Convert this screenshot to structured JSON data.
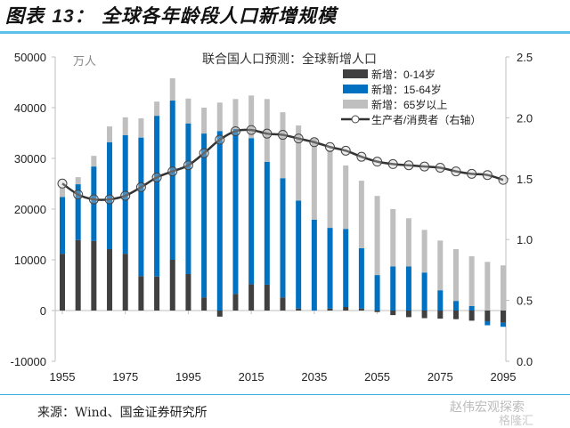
{
  "header": {
    "title_prefix": "图表",
    "title_number": "13：",
    "title_text": "全球各年龄段人口新增规模"
  },
  "footer": {
    "source": "来源：Wind、国金证券研究所",
    "watermark": "赵伟宏观探索",
    "watermark2": "格隆汇"
  },
  "colors": {
    "age_0_14": "#404040",
    "age_15_64": "#0070c0",
    "age_65_plus": "#bfbfbf",
    "ratio_line": "#333333",
    "title_rule": "#5bc0eb"
  },
  "chart_data": {
    "type": "bar",
    "stacked": true,
    "title": "联合国人口预测：全球新增人口",
    "unit_label": "万人",
    "xlabel": "",
    "ylabel": "万人",
    "y2label": "生产者/消费者（右轴）",
    "ylim": [
      -10000,
      50000
    ],
    "y2lim": [
      0.0,
      2.5
    ],
    "yticks": [
      "50000",
      "40000",
      "30000",
      "20000",
      "10000",
      "0",
      "-10000"
    ],
    "y2ticks": [
      "2.5",
      "2.0",
      "1.5",
      "1.0",
      "0.5",
      "0.0"
    ],
    "xtick_labels": [
      "1955",
      "1975",
      "1995",
      "2015",
      "2035",
      "2055",
      "2075",
      "2095"
    ],
    "legend_position": "top-right",
    "x": [
      1955,
      1960,
      1965,
      1970,
      1975,
      1980,
      1985,
      1990,
      1995,
      2000,
      2005,
      2010,
      2015,
      2020,
      2025,
      2030,
      2035,
      2040,
      2045,
      2050,
      2055,
      2060,
      2065,
      2070,
      2075,
      2080,
      2085,
      2090,
      2095
    ],
    "series": [
      {
        "name": "新增：0-14岁",
        "key": "age_0_14",
        "type": "bar",
        "values": [
          11200,
          13900,
          13700,
          12100,
          11200,
          6800,
          6700,
          10000,
          7200,
          2600,
          -1200,
          3300,
          5200,
          5100,
          2600,
          400,
          0,
          400,
          700,
          400,
          -300,
          -900,
          -1300,
          -1500,
          -1600,
          -1700,
          -2000,
          -2100,
          -2400
        ]
      },
      {
        "name": "新增：15-64岁",
        "key": "age_15_64",
        "type": "bar",
        "values": [
          11200,
          11000,
          14700,
          21100,
          23400,
          27300,
          31700,
          31400,
          29700,
          32300,
          35400,
          32500,
          28800,
          24200,
          23500,
          21300,
          17900,
          15900,
          15400,
          11900,
          7000,
          8700,
          8700,
          7500,
          4000,
          1900,
          900,
          -800,
          -800
        ]
      },
      {
        "name": "新增：65岁以上",
        "key": "age_65_plus",
        "type": "bar",
        "values": [
          1800,
          1400,
          2100,
          3100,
          3500,
          3800,
          2800,
          4400,
          4900,
          5100,
          5600,
          5900,
          8400,
          12400,
          13000,
          14800,
          16000,
          15300,
          12500,
          13300,
          15600,
          11300,
          9500,
          8400,
          9800,
          10200,
          9800,
          9600,
          8900
        ]
      },
      {
        "name": "生产者/消费者（右轴）",
        "key": "ratio_line",
        "type": "line",
        "axis": "right",
        "values": [
          1.46,
          1.37,
          1.33,
          1.33,
          1.36,
          1.43,
          1.51,
          1.56,
          1.61,
          1.71,
          1.82,
          1.89,
          1.9,
          1.87,
          1.86,
          1.83,
          1.8,
          1.76,
          1.73,
          1.68,
          1.64,
          1.62,
          1.61,
          1.6,
          1.59,
          1.56,
          1.54,
          1.53,
          1.49
        ]
      }
    ]
  }
}
